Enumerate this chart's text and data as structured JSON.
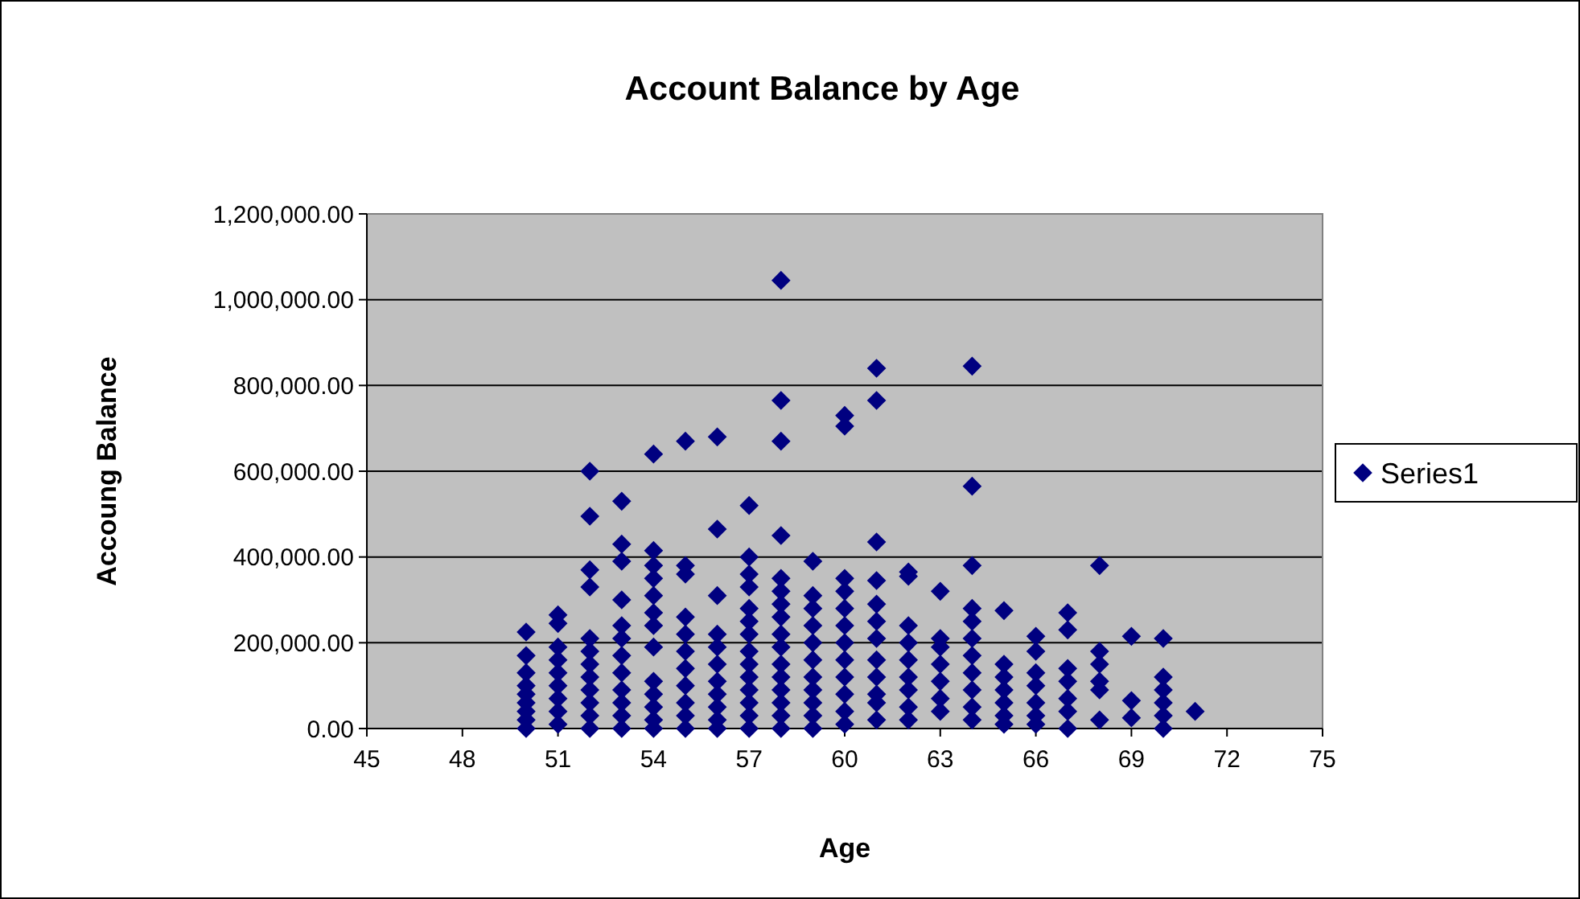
{
  "chart_data": {
    "type": "scatter",
    "title": "Account Balance by Age",
    "xlabel": "Age",
    "ylabel": "Accoung Balance",
    "marker": "diamond",
    "grid": "y",
    "legend": "right",
    "xlim": [
      45,
      75
    ],
    "xticks": [
      45,
      48,
      51,
      54,
      57,
      60,
      63,
      66,
      69,
      72,
      75
    ],
    "ylim": [
      0,
      1200000
    ],
    "yticks": [
      {
        "value": 0,
        "label": "0.00"
      },
      {
        "value": 200000,
        "label": "200,000.00"
      },
      {
        "value": 400000,
        "label": "400,000.00"
      },
      {
        "value": 600000,
        "label": "600,000.00"
      },
      {
        "value": 800000,
        "label": "800,000.00"
      },
      {
        "value": 1000000,
        "label": "1,000,000.00"
      },
      {
        "value": 1200000,
        "label": "1,200,000.00"
      }
    ],
    "series": [
      {
        "name": "Series1",
        "color": "#000080",
        "x": [
          50,
          50,
          50,
          50,
          50,
          50,
          50,
          50,
          50,
          51,
          51,
          51,
          51,
          51,
          51,
          51,
          51,
          51,
          52,
          52,
          52,
          52,
          52,
          52,
          52,
          52,
          52,
          52,
          52,
          52,
          53,
          53,
          53,
          53,
          53,
          53,
          53,
          53,
          53,
          53,
          53,
          53,
          54,
          54,
          54,
          54,
          54,
          54,
          54,
          54,
          54,
          54,
          54,
          54,
          54,
          55,
          55,
          55,
          55,
          55,
          55,
          55,
          55,
          55,
          55,
          55,
          56,
          56,
          56,
          56,
          56,
          56,
          56,
          56,
          56,
          56,
          56,
          57,
          57,
          57,
          57,
          57,
          57,
          57,
          57,
          57,
          57,
          57,
          57,
          57,
          57,
          58,
          58,
          58,
          58,
          58,
          58,
          58,
          58,
          58,
          58,
          58,
          58,
          58,
          58,
          58,
          58,
          59,
          59,
          59,
          59,
          59,
          59,
          59,
          59,
          59,
          59,
          59,
          60,
          60,
          60,
          60,
          60,
          60,
          60,
          60,
          60,
          60,
          60,
          60,
          61,
          61,
          61,
          61,
          61,
          61,
          61,
          61,
          61,
          61,
          61,
          61,
          62,
          62,
          62,
          62,
          62,
          62,
          62,
          62,
          62,
          63,
          63,
          63,
          63,
          63,
          63,
          63,
          64,
          64,
          64,
          64,
          64,
          64,
          64,
          64,
          64,
          64,
          64,
          65,
          65,
          65,
          65,
          65,
          65,
          65,
          66,
          66,
          66,
          66,
          66,
          66,
          66,
          67,
          67,
          67,
          67,
          67,
          67,
          67,
          68,
          68,
          68,
          68,
          68,
          68,
          69,
          69,
          69,
          70,
          70,
          70,
          70,
          70,
          70,
          71
        ],
        "values": [
          225000,
          170000,
          130000,
          100000,
          80000,
          60000,
          40000,
          20000,
          0,
          265000,
          245000,
          190000,
          160000,
          130000,
          100000,
          70000,
          40000,
          10000,
          600000,
          495000,
          370000,
          330000,
          210000,
          180000,
          150000,
          120000,
          90000,
          60000,
          30000,
          0,
          530000,
          430000,
          390000,
          300000,
          240000,
          210000,
          170000,
          130000,
          90000,
          60000,
          30000,
          0,
          640000,
          415000,
          380000,
          350000,
          310000,
          270000,
          240000,
          190000,
          110000,
          80000,
          50000,
          20000,
          0,
          670000,
          380000,
          360000,
          260000,
          220000,
          180000,
          140000,
          100000,
          60000,
          30000,
          0,
          680000,
          465000,
          310000,
          220000,
          190000,
          150000,
          110000,
          80000,
          50000,
          20000,
          0,
          520000,
          400000,
          360000,
          330000,
          280000,
          250000,
          220000,
          180000,
          150000,
          120000,
          90000,
          60000,
          30000,
          0,
          1045000,
          765000,
          670000,
          450000,
          350000,
          320000,
          290000,
          260000,
          220000,
          190000,
          150000,
          120000,
          90000,
          60000,
          30000,
          0,
          390000,
          310000,
          280000,
          240000,
          200000,
          160000,
          120000,
          90000,
          60000,
          30000,
          0,
          730000,
          705000,
          350000,
          320000,
          280000,
          240000,
          200000,
          160000,
          120000,
          80000,
          40000,
          10000,
          840000,
          765000,
          435000,
          345000,
          290000,
          250000,
          210000,
          160000,
          120000,
          80000,
          60000,
          20000,
          365000,
          355000,
          240000,
          200000,
          160000,
          120000,
          90000,
          50000,
          20000,
          320000,
          210000,
          190000,
          150000,
          110000,
          70000,
          40000,
          845000,
          565000,
          380000,
          280000,
          250000,
          210000,
          170000,
          130000,
          90000,
          50000,
          20000,
          275000,
          150000,
          120000,
          90000,
          60000,
          30000,
          10000,
          215000,
          180000,
          130000,
          100000,
          60000,
          30000,
          10000,
          270000,
          230000,
          140000,
          110000,
          70000,
          40000,
          0,
          380000,
          180000,
          150000,
          110000,
          90000,
          20000,
          215000,
          65000,
          25000,
          210000,
          120000,
          90000,
          60000,
          30000,
          0,
          40000
        ]
      }
    ]
  }
}
